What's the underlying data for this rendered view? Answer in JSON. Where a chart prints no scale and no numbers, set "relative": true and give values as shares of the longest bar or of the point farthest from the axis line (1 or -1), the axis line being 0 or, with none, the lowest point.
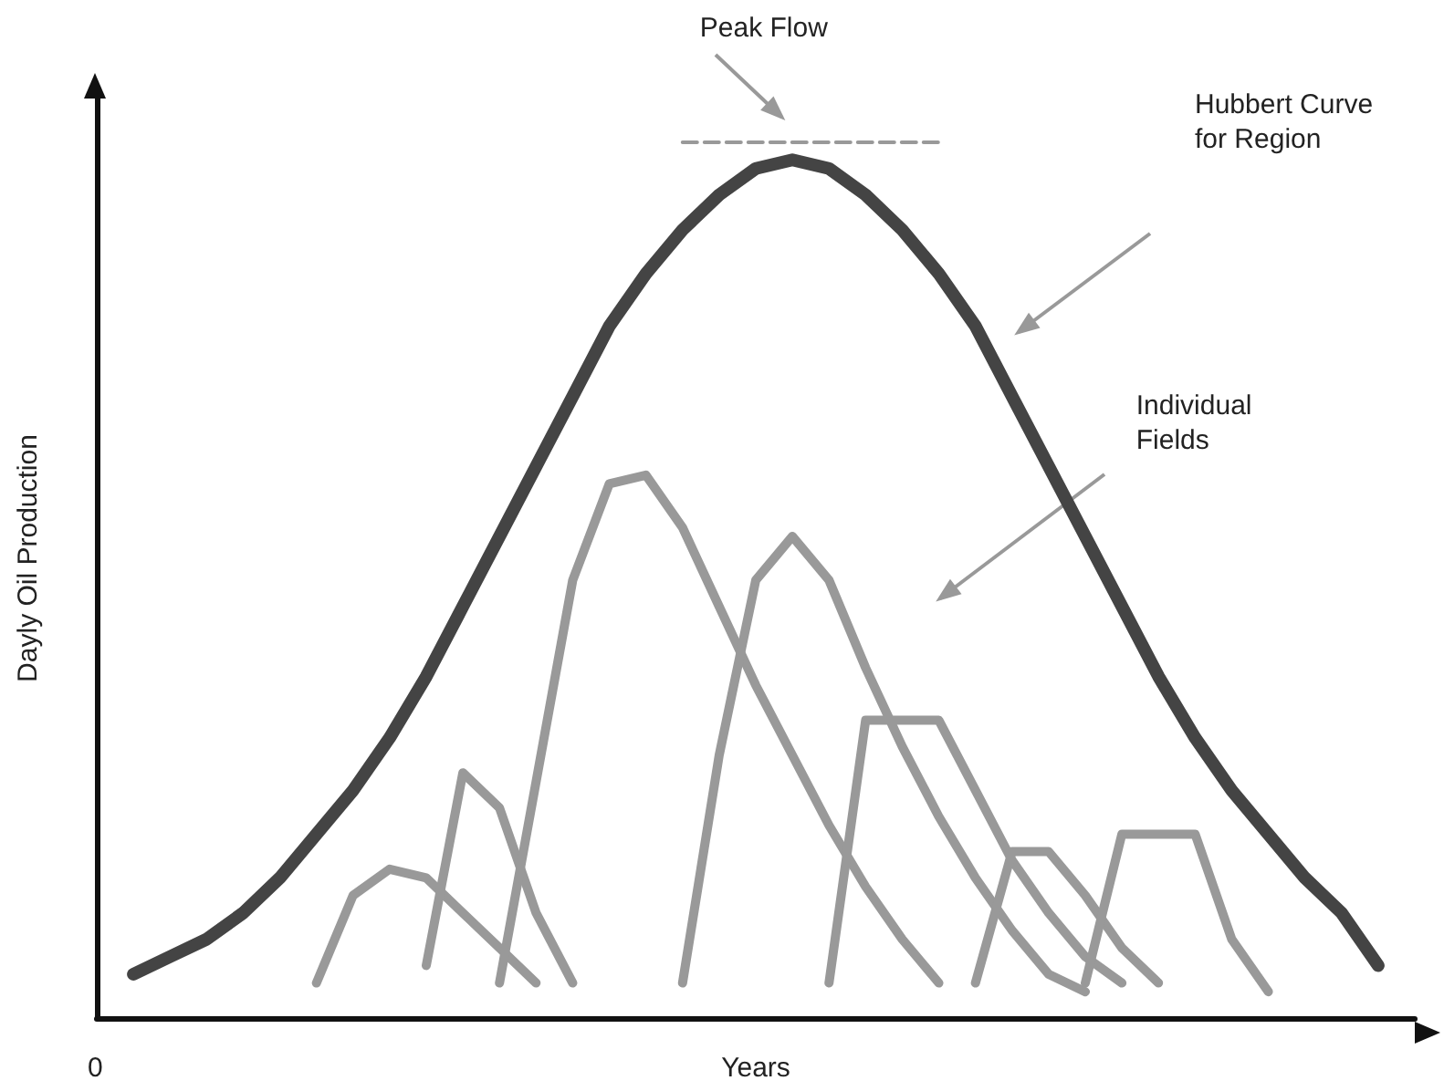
{
  "chart_data": {
    "type": "line",
    "relative": true,
    "xlabel": "Years",
    "ylabel": "Dayly Oil Production",
    "categories": [
      null,
      null,
      null,
      null,
      null,
      null,
      null,
      null,
      null,
      null,
      null,
      null,
      null,
      null,
      null,
      null,
      null,
      null,
      null,
      null,
      null,
      null,
      null,
      null,
      null,
      null,
      null,
      null,
      null,
      null,
      null,
      null,
      null,
      null,
      null,
      null,
      null
    ],
    "series": [
      {
        "color": "#444444",
        "values": [
          null,
          0.05,
          0.07,
          0.09,
          0.12,
          0.16,
          0.21,
          0.26,
          0.32,
          0.39,
          0.47,
          0.55,
          0.63,
          0.71,
          0.79,
          0.85,
          0.9,
          0.94,
          0.97,
          0.98,
          0.97,
          0.94,
          0.9,
          0.85,
          0.79,
          0.71,
          0.63,
          0.55,
          0.47,
          0.39,
          0.32,
          0.26,
          0.21,
          0.16,
          0.12,
          0.06,
          null
        ]
      },
      {
        "color": "#999999",
        "line_style": "dashed",
        "values": [
          null,
          null,
          null,
          null,
          null,
          null,
          null,
          null,
          null,
          null,
          null,
          null,
          null,
          null,
          null,
          null,
          1,
          1,
          1,
          1,
          1,
          1,
          1,
          1,
          null,
          null,
          null,
          null,
          null,
          null,
          null,
          null,
          null,
          null,
          null,
          null,
          null
        ]
      },
      {
        "color": "#999999",
        "values": [
          null,
          null,
          null,
          null,
          null,
          null,
          0.04,
          0.14,
          0.17,
          0.16,
          0.12,
          0.08,
          0.04,
          null,
          null,
          null,
          null,
          null,
          null,
          null,
          null,
          null,
          null,
          null,
          null,
          null,
          null,
          null,
          null,
          null,
          null,
          null,
          null,
          null,
          null,
          null,
          null
        ]
      },
      {
        "color": "#999999",
        "values": [
          null,
          null,
          null,
          null,
          null,
          null,
          null,
          null,
          null,
          0.06,
          0.28,
          0.24,
          0.12,
          0.04,
          null,
          null,
          null,
          null,
          null,
          null,
          null,
          null,
          null,
          null,
          null,
          null,
          null,
          null,
          null,
          null,
          null,
          null,
          null,
          null,
          null,
          null,
          null
        ]
      },
      {
        "color": "#999999",
        "values": [
          null,
          null,
          null,
          null,
          null,
          null,
          null,
          null,
          null,
          null,
          null,
          0.04,
          0.27,
          0.5,
          0.61,
          0.62,
          0.56,
          0.47,
          0.38,
          0.3,
          0.22,
          0.15,
          0.09,
          0.04,
          null,
          null,
          null,
          null,
          null,
          null,
          null,
          null,
          null,
          null,
          null,
          null,
          null
        ]
      },
      {
        "color": "#999999",
        "values": [
          null,
          null,
          null,
          null,
          null,
          null,
          null,
          null,
          null,
          null,
          null,
          null,
          null,
          null,
          null,
          null,
          0.04,
          0.3,
          0.5,
          0.55,
          0.5,
          0.4,
          0.31,
          0.23,
          0.16,
          0.1,
          0.05,
          0.03,
          null,
          null,
          null,
          null,
          null,
          null,
          null,
          null,
          null
        ]
      },
      {
        "color": "#999999",
        "values": [
          null,
          null,
          null,
          null,
          null,
          null,
          null,
          null,
          null,
          null,
          null,
          null,
          null,
          null,
          null,
          null,
          null,
          null,
          null,
          null,
          0.04,
          0.34,
          0.34,
          0.34,
          0.26,
          0.18,
          0.12,
          0.07,
          0.04,
          null,
          null,
          null,
          null,
          null,
          null,
          null,
          null
        ]
      },
      {
        "color": "#999999",
        "values": [
          null,
          null,
          null,
          null,
          null,
          null,
          null,
          null,
          null,
          null,
          null,
          null,
          null,
          null,
          null,
          null,
          null,
          null,
          null,
          null,
          null,
          null,
          null,
          null,
          0.04,
          0.19,
          0.19,
          0.14,
          0.08,
          0.04,
          null,
          null,
          null,
          null,
          null,
          null,
          null
        ]
      },
      {
        "color": "#999999",
        "values": [
          null,
          null,
          null,
          null,
          null,
          null,
          null,
          null,
          null,
          null,
          null,
          null,
          null,
          null,
          null,
          null,
          null,
          null,
          null,
          null,
          null,
          null,
          null,
          null,
          null,
          null,
          null,
          0.04,
          0.21,
          0.21,
          0.21,
          0.09,
          0.03,
          null,
          null,
          null,
          null
        ]
      }
    ],
    "annotations": [
      "Peak Flow",
      "Hubbert Curve for Region",
      "Individual Fields",
      "0"
    ],
    "grid": false,
    "marker": "none"
  }
}
